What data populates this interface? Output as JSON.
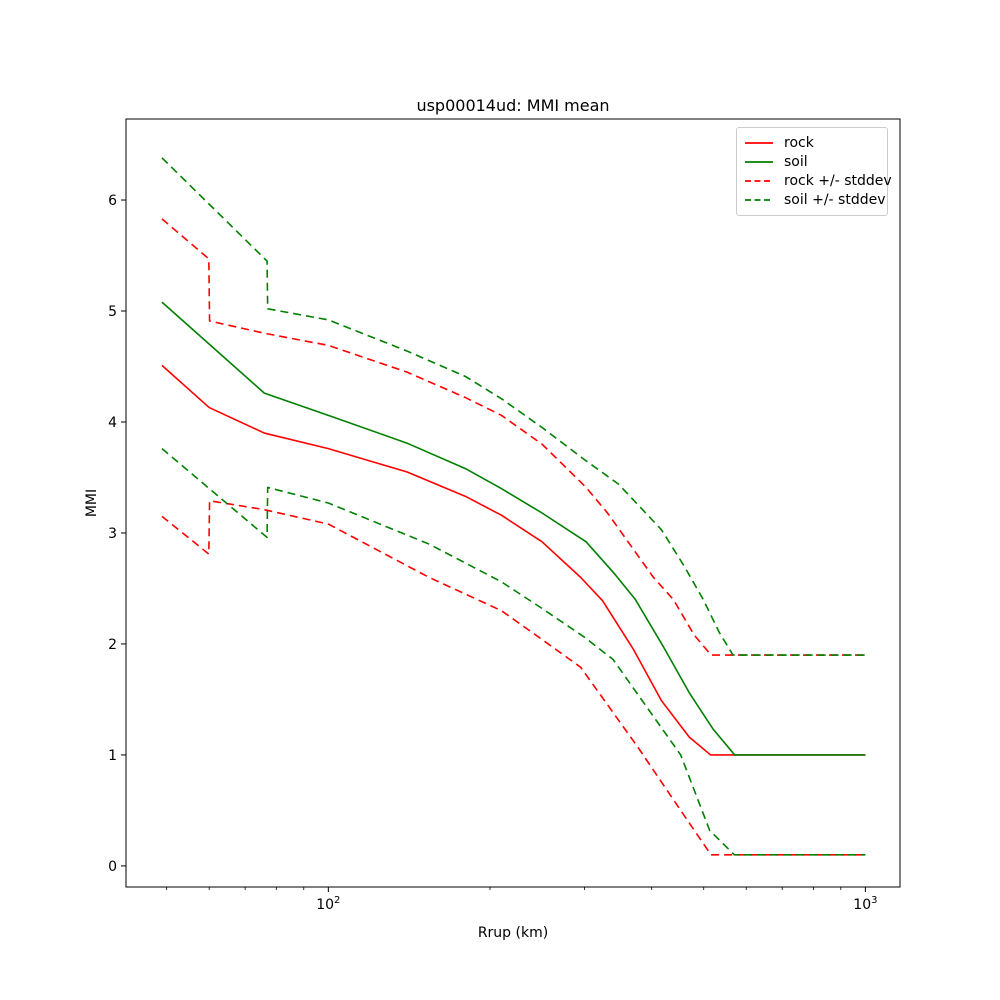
{
  "title": "usp00014ud: MMI mean",
  "chart_data": {
    "type": "line",
    "title": "usp00014ud: MMI mean",
    "xlabel": "Rrup (km)",
    "ylabel": "MMI",
    "x_scale": "log",
    "xlim": [
      42,
      1160
    ],
    "ylim": [
      -0.19,
      6.73
    ],
    "grid": false,
    "legend_position": "upper right",
    "x_major_ticks": [
      {
        "value": 100,
        "base": "10",
        "exp": "2"
      },
      {
        "value": 1000,
        "base": "10",
        "exp": "3"
      }
    ],
    "x_minor_ticks": [
      50,
      60,
      70,
      80,
      90,
      200,
      300,
      400,
      500,
      600,
      700,
      800,
      900
    ],
    "y_ticks": [
      "0",
      "1",
      "2",
      "3",
      "4",
      "5",
      "6"
    ],
    "y_tick_values": [
      0,
      1,
      2,
      3,
      4,
      5,
      6
    ],
    "legend": [
      {
        "label": "rock",
        "color": "#ff0000",
        "dash": "solid"
      },
      {
        "label": "soil",
        "color": "#008000",
        "dash": "solid"
      },
      {
        "label": "rock +/- stddev",
        "color": "#ff0000",
        "dash": "dashed"
      },
      {
        "label": "soil +/- stddev",
        "color": "#008000",
        "dash": "dashed"
      }
    ],
    "series": [
      {
        "name": "rock mean",
        "color": "#ff0000",
        "dash": "solid",
        "points": [
          [
            49,
            4.51
          ],
          [
            60,
            4.13
          ],
          [
            76,
            3.9
          ],
          [
            100,
            3.76
          ],
          [
            140,
            3.55
          ],
          [
            180,
            3.33
          ],
          [
            210,
            3.16
          ],
          [
            250,
            2.92
          ],
          [
            295,
            2.6
          ],
          [
            324,
            2.39
          ],
          [
            370,
            1.95
          ],
          [
            417,
            1.49
          ],
          [
            470,
            1.16
          ],
          [
            515,
            1.0
          ],
          [
            1000,
            1.0
          ]
        ]
      },
      {
        "name": "soil mean",
        "color": "#008000",
        "dash": "solid",
        "points": [
          [
            49,
            5.08
          ],
          [
            76,
            4.26
          ],
          [
            100,
            4.06
          ],
          [
            140,
            3.81
          ],
          [
            180,
            3.58
          ],
          [
            210,
            3.4
          ],
          [
            250,
            3.18
          ],
          [
            302,
            2.92
          ],
          [
            340,
            2.64
          ],
          [
            373,
            2.4
          ],
          [
            420,
            1.98
          ],
          [
            470,
            1.56
          ],
          [
            521,
            1.23
          ],
          [
            571,
            1.0
          ],
          [
            1000,
            1.0
          ]
        ]
      },
      {
        "name": "rock plus stddev",
        "color": "#ff0000",
        "dash": "dashed",
        "points": [
          [
            49,
            5.83
          ],
          [
            59.9,
            5.47
          ],
          [
            60.1,
            4.91
          ],
          [
            76,
            4.8
          ],
          [
            100,
            4.69
          ],
          [
            140,
            4.45
          ],
          [
            180,
            4.22
          ],
          [
            210,
            4.06
          ],
          [
            250,
            3.8
          ],
          [
            302,
            3.41
          ],
          [
            331,
            3.18
          ],
          [
            403,
            2.6
          ],
          [
            439,
            2.4
          ],
          [
            480,
            2.08
          ],
          [
            516,
            1.9
          ],
          [
            1000,
            1.9
          ]
        ]
      },
      {
        "name": "rock minus stddev",
        "color": "#ff0000",
        "dash": "dashed",
        "points": [
          [
            49,
            3.15
          ],
          [
            59.9,
            2.81
          ],
          [
            60.1,
            3.29
          ],
          [
            76,
            3.21
          ],
          [
            100,
            3.08
          ],
          [
            154,
            2.6
          ],
          [
            210,
            2.3
          ],
          [
            250,
            2.04
          ],
          [
            295,
            1.79
          ],
          [
            377,
            1.07
          ],
          [
            453,
            0.5
          ],
          [
            516,
            0.1
          ],
          [
            1000,
            0.1
          ]
        ]
      },
      {
        "name": "soil plus stddev",
        "color": "#008000",
        "dash": "dashed",
        "points": [
          [
            49,
            6.38
          ],
          [
            76.9,
            5.45
          ],
          [
            77.1,
            5.02
          ],
          [
            100,
            4.92
          ],
          [
            140,
            4.64
          ],
          [
            180,
            4.41
          ],
          [
            210,
            4.21
          ],
          [
            250,
            3.95
          ],
          [
            300,
            3.66
          ],
          [
            347,
            3.44
          ],
          [
            417,
            3.03
          ],
          [
            460,
            2.7
          ],
          [
            499,
            2.4
          ],
          [
            535,
            2.1
          ],
          [
            567,
            1.9
          ],
          [
            1000,
            1.9
          ]
        ]
      },
      {
        "name": "soil minus stddev",
        "color": "#008000",
        "dash": "dashed",
        "points": [
          [
            49,
            3.76
          ],
          [
            76.9,
            2.96
          ],
          [
            77.1,
            3.41
          ],
          [
            100,
            3.27
          ],
          [
            154,
            2.9
          ],
          [
            210,
            2.56
          ],
          [
            250,
            2.32
          ],
          [
            300,
            2.06
          ],
          [
            339,
            1.86
          ],
          [
            453,
            1.0
          ],
          [
            513,
            0.32
          ],
          [
            570,
            0.1
          ],
          [
            1000,
            0.1
          ]
        ]
      }
    ]
  }
}
